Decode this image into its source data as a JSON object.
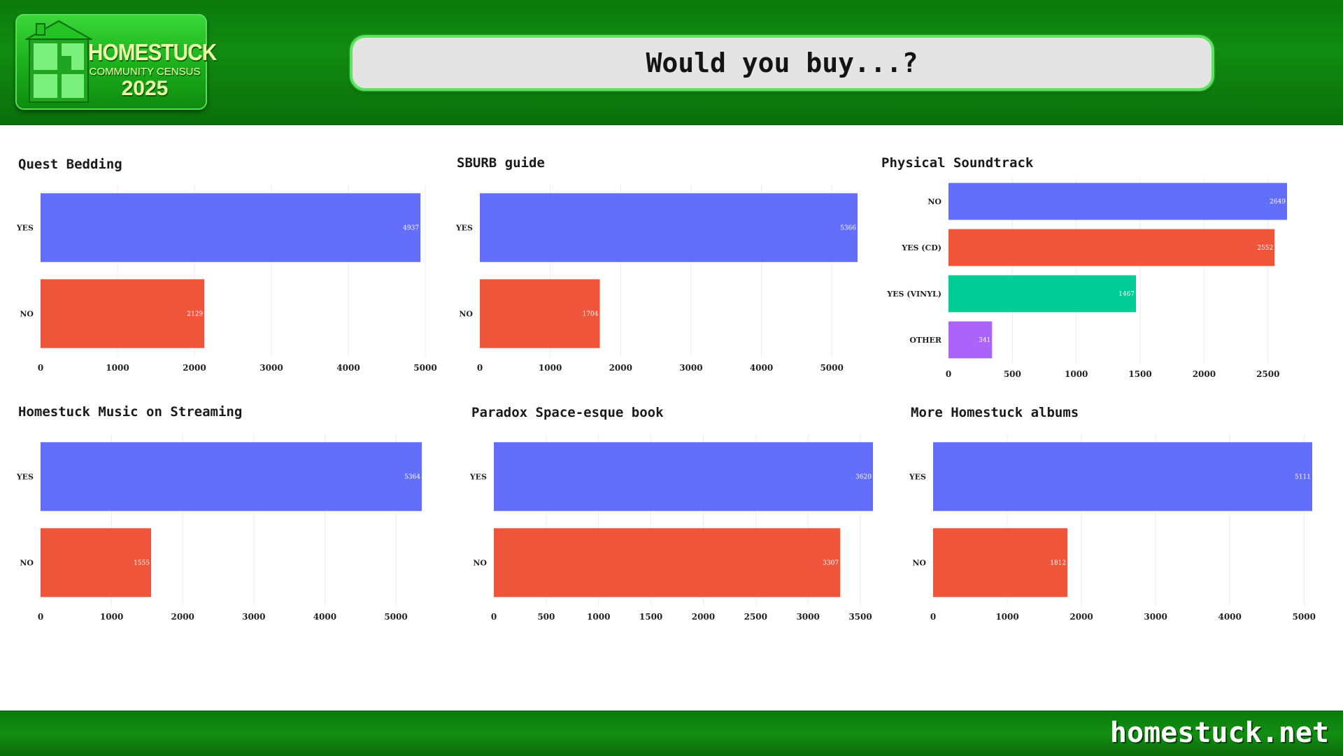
{
  "header": {
    "logo_title": "HOMESTUCK",
    "logo_subtitle": "COMMUNITY CENSUS",
    "logo_year": "2025",
    "page_title": "Would you buy...?"
  },
  "footer": {
    "site": "homestuck.net"
  },
  "colors": {
    "header_green": "#118c11",
    "bar_blue": "#636efa",
    "bar_red": "#ef553b",
    "bar_green": "#00cc96",
    "bar_purple": "#ab63fa"
  },
  "chart_data": [
    {
      "type": "bar",
      "orientation": "horizontal",
      "title": "Quest Bedding",
      "categories": [
        "YES",
        "NO"
      ],
      "values": [
        4937,
        2129
      ],
      "colors": [
        "#636efa",
        "#ef553b"
      ],
      "xticks": [
        0,
        1000,
        2000,
        3000,
        4000,
        5000
      ],
      "xlim": [
        0,
        5000
      ]
    },
    {
      "type": "bar",
      "orientation": "horizontal",
      "title": "SBURB guide",
      "categories": [
        "YES",
        "NO"
      ],
      "values": [
        5366,
        1704
      ],
      "colors": [
        "#636efa",
        "#ef553b"
      ],
      "xticks": [
        0,
        1000,
        2000,
        3000,
        4000,
        5000
      ],
      "xlim": [
        0,
        5366
      ]
    },
    {
      "type": "bar",
      "orientation": "horizontal",
      "title": "Physical Soundtrack",
      "categories": [
        "NO",
        "YES (CD)",
        "YES (VINYL)",
        "OTHER"
      ],
      "values": [
        2649,
        2552,
        1467,
        341
      ],
      "colors": [
        "#636efa",
        "#ef553b",
        "#00cc96",
        "#ab63fa"
      ],
      "xticks": [
        0,
        500,
        1000,
        1500,
        2000,
        2500
      ],
      "xlim": [
        0,
        2649
      ]
    },
    {
      "type": "bar",
      "orientation": "horizontal",
      "title": "Homestuck Music on Streaming",
      "categories": [
        "YES",
        "NO"
      ],
      "values": [
        5364,
        1555
      ],
      "colors": [
        "#636efa",
        "#ef553b"
      ],
      "xticks": [
        0,
        1000,
        2000,
        3000,
        4000,
        5000
      ],
      "xlim": [
        0,
        5364
      ]
    },
    {
      "type": "bar",
      "orientation": "horizontal",
      "title": "Paradox Space-esque book",
      "categories": [
        "YES",
        "NO"
      ],
      "values": [
        3620,
        3307
      ],
      "colors": [
        "#636efa",
        "#ef553b"
      ],
      "xticks": [
        0,
        500,
        1000,
        1500,
        2000,
        2500,
        3000,
        3500
      ],
      "xlim": [
        0,
        3620
      ]
    },
    {
      "type": "bar",
      "orientation": "horizontal",
      "title": "More Homestuck albums",
      "categories": [
        "YES",
        "NO"
      ],
      "values": [
        5111,
        1812
      ],
      "colors": [
        "#636efa",
        "#ef553b"
      ],
      "xticks": [
        0,
        1000,
        2000,
        3000,
        4000,
        5000
      ],
      "xlim": [
        0,
        5111
      ]
    }
  ]
}
